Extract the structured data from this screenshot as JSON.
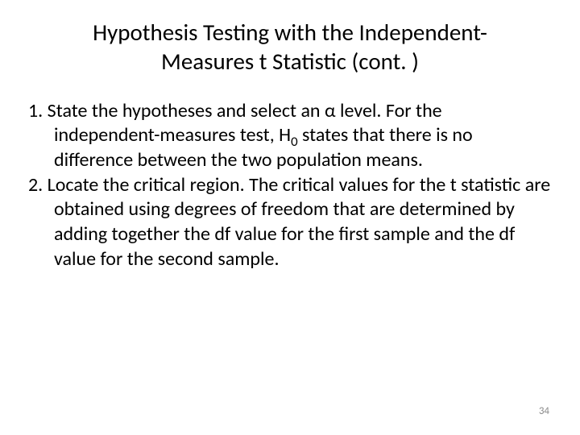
{
  "title": "Hypothesis Testing with the Independent-Measures t Statistic (cont. )",
  "items": [
    {
      "number": "1.",
      "prefix": "State the hypotheses and select an α level.  For the independent-measures test, H",
      "sub": "0",
      "suffix": " states that there is no difference between the two population means."
    },
    {
      "number": "2.",
      "prefix": "Locate the critical region.  The critical values for the t statistic are obtained using degrees of freedom that are determined by adding together the df value for the first sample and the df value for the second sample.",
      "sub": "",
      "suffix": ""
    }
  ],
  "page_number": "34",
  "colors": {
    "background": "#ffffff",
    "text": "#000000",
    "page_number": "#8b8b8b"
  },
  "typography": {
    "title_fontsize": 29,
    "body_fontsize": 24,
    "pagenum_fontsize": 13
  }
}
